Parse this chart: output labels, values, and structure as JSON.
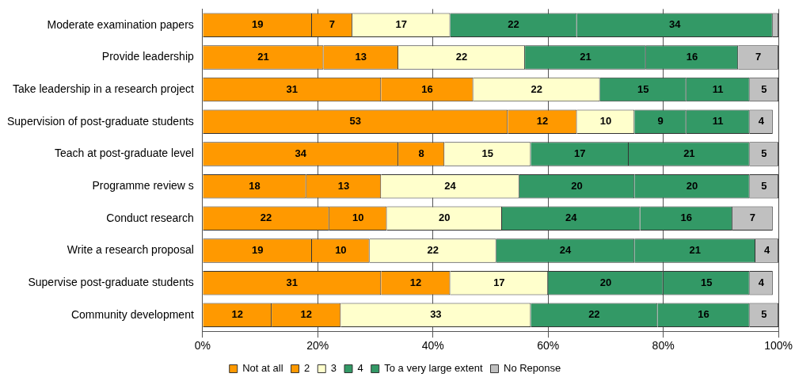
{
  "chart_data": {
    "type": "bar",
    "orientation": "horizontal",
    "stacked": true,
    "categories": [
      "Moderate examination papers",
      "Provide leadership",
      "Take leadership in a research project",
      "Supervision of post-graduate students",
      "Teach at post-graduate level",
      "Programme review s",
      "Conduct research",
      "Write a research proposal",
      "Supervise post-graduate students",
      "Community development"
    ],
    "series": [
      {
        "name": "Not at all",
        "color": "#ff9900",
        "values": [
          19,
          21,
          31,
          53,
          34,
          18,
          22,
          19,
          31,
          12
        ],
        "value_labels": [
          "19",
          "21",
          "31",
          "53",
          "34",
          "18",
          "22",
          "19",
          "31",
          "12"
        ]
      },
      {
        "name": "2",
        "color": "#ff9900",
        "values": [
          7,
          13,
          16,
          12,
          8,
          13,
          10,
          10,
          12,
          12
        ],
        "value_labels": [
          "7",
          "13",
          "16",
          "12",
          "8",
          "13",
          "10",
          "10",
          "12",
          "12"
        ]
      },
      {
        "name": "3",
        "color": "#ffffcc",
        "values": [
          17,
          22,
          22,
          10,
          15,
          24,
          20,
          22,
          17,
          33
        ],
        "value_labels": [
          "17",
          "22",
          "22",
          "10",
          "15",
          "24",
          "20",
          "22",
          "17",
          "33"
        ]
      },
      {
        "name": "4",
        "color": "#339966",
        "values": [
          22,
          21,
          15,
          9,
          17,
          20,
          24,
          24,
          20,
          22
        ],
        "value_labels": [
          "22",
          "21",
          "15",
          "9",
          "17",
          "20",
          "24",
          "24",
          "20",
          "22"
        ]
      },
      {
        "name": "To a very large extent",
        "color": "#339966",
        "values": [
          34,
          16,
          11,
          11,
          21,
          20,
          16,
          21,
          15,
          16
        ],
        "value_labels": [
          "34",
          "16",
          "11",
          "11",
          "21",
          "20",
          "16",
          "21",
          "15",
          "16"
        ]
      },
      {
        "name": "No Reponse",
        "color": "#c0c0c0",
        "values": [
          1,
          7,
          5,
          4,
          5,
          5,
          7,
          4,
          4,
          5
        ],
        "value_labels": [
          null,
          "7",
          "5",
          "4",
          "5",
          "5",
          "7",
          "4",
          "4",
          "5"
        ]
      }
    ],
    "xlim": [
      0,
      100
    ],
    "xticks": [
      {
        "value": 0,
        "label": "0%"
      },
      {
        "value": 20,
        "label": "20%"
      },
      {
        "value": 40,
        "label": "40%"
      },
      {
        "value": 60,
        "label": "60%"
      },
      {
        "value": 80,
        "label": "80%"
      },
      {
        "value": 100,
        "label": "100%"
      }
    ],
    "grid": "x",
    "legend": "bottom"
  }
}
